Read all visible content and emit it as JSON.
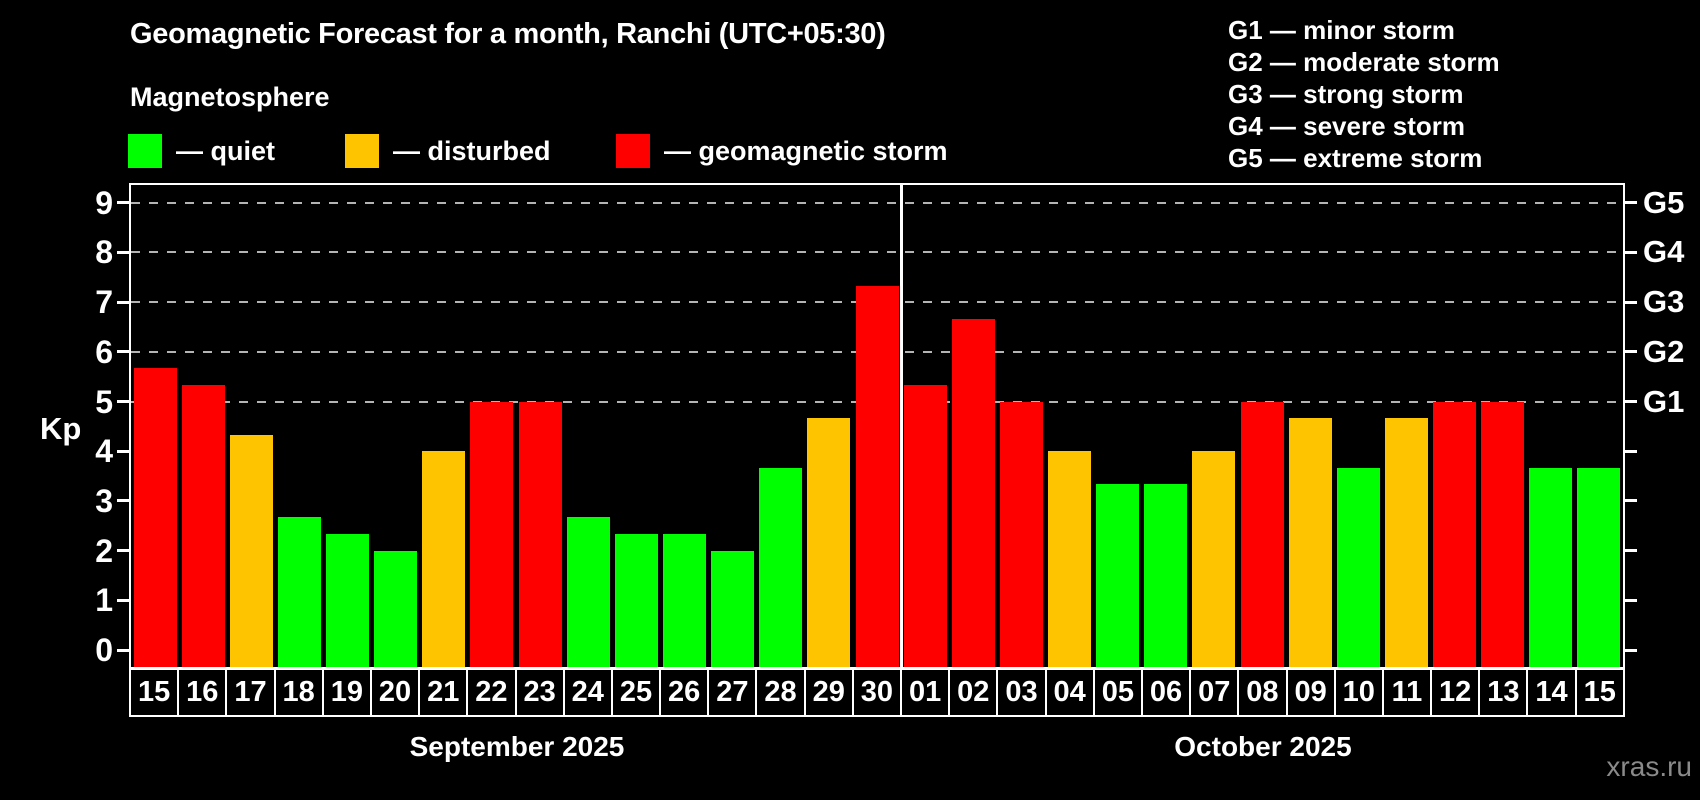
{
  "title": "Geomagnetic Forecast for a month, Ranchi (UTC+05:30)",
  "subtitle": "Magnetosphere",
  "legend": [
    {
      "key": "quiet",
      "label": "— quiet",
      "color": "#00ff00"
    },
    {
      "key": "disturbed",
      "label": "— disturbed",
      "color": "#ffc400"
    },
    {
      "key": "storm",
      "label": "— geomagnetic storm",
      "color": "#ff0000"
    }
  ],
  "g_scale_legend": [
    "G1 — minor storm",
    "G2 — moderate storm",
    "G3 — strong storm",
    "G4 — severe storm",
    "G5 — extreme storm"
  ],
  "watermark": "xras.ru",
  "chart_data": {
    "type": "bar",
    "ylabel": "Kp",
    "ylim": [
      0,
      9
    ],
    "yticks": [
      0,
      1,
      2,
      3,
      4,
      5,
      6,
      7,
      8,
      9
    ],
    "gridlines_at": [
      5,
      6,
      7,
      8,
      9
    ],
    "grid": "dashed, only at storm levels Kp 5-9",
    "legend_position": "top-left",
    "right_axis_labels": [
      {
        "kp": 5,
        "label": "G1"
      },
      {
        "kp": 6,
        "label": "G2"
      },
      {
        "kp": 7,
        "label": "G3"
      },
      {
        "kp": 8,
        "label": "G4"
      },
      {
        "kp": 9,
        "label": "G5"
      }
    ],
    "status_colors": {
      "quiet": "#00ff00",
      "disturbed": "#ffc400",
      "storm": "#ff0000"
    },
    "months": [
      {
        "label": "September 2025",
        "days": [
          {
            "day": "15",
            "kp": 5.67,
            "status": "storm"
          },
          {
            "day": "16",
            "kp": 5.33,
            "status": "storm"
          },
          {
            "day": "17",
            "kp": 4.33,
            "status": "disturbed"
          },
          {
            "day": "18",
            "kp": 2.67,
            "status": "quiet"
          },
          {
            "day": "19",
            "kp": 2.33,
            "status": "quiet"
          },
          {
            "day": "20",
            "kp": 2.0,
            "status": "quiet"
          },
          {
            "day": "21",
            "kp": 4.0,
            "status": "disturbed"
          },
          {
            "day": "22",
            "kp": 5.0,
            "status": "storm"
          },
          {
            "day": "23",
            "kp": 5.0,
            "status": "storm"
          },
          {
            "day": "24",
            "kp": 2.67,
            "status": "quiet"
          },
          {
            "day": "25",
            "kp": 2.33,
            "status": "quiet"
          },
          {
            "day": "26",
            "kp": 2.33,
            "status": "quiet"
          },
          {
            "day": "27",
            "kp": 2.0,
            "status": "quiet"
          },
          {
            "day": "28",
            "kp": 3.67,
            "status": "quiet"
          },
          {
            "day": "29",
            "kp": 4.67,
            "status": "disturbed"
          },
          {
            "day": "30",
            "kp": 7.33,
            "status": "storm"
          }
        ]
      },
      {
        "label": "October 2025",
        "days": [
          {
            "day": "01",
            "kp": 5.33,
            "status": "storm"
          },
          {
            "day": "02",
            "kp": 6.67,
            "status": "storm"
          },
          {
            "day": "03",
            "kp": 5.0,
            "status": "storm"
          },
          {
            "day": "04",
            "kp": 4.0,
            "status": "disturbed"
          },
          {
            "day": "05",
            "kp": 3.33,
            "status": "quiet"
          },
          {
            "day": "06",
            "kp": 3.33,
            "status": "quiet"
          },
          {
            "day": "07",
            "kp": 4.0,
            "status": "disturbed"
          },
          {
            "day": "08",
            "kp": 5.0,
            "status": "storm"
          },
          {
            "day": "09",
            "kp": 4.67,
            "status": "disturbed"
          },
          {
            "day": "10",
            "kp": 3.67,
            "status": "quiet"
          },
          {
            "day": "11",
            "kp": 4.67,
            "status": "disturbed"
          },
          {
            "day": "12",
            "kp": 5.0,
            "status": "storm"
          },
          {
            "day": "13",
            "kp": 5.0,
            "status": "storm"
          },
          {
            "day": "14",
            "kp": 3.67,
            "status": "quiet"
          },
          {
            "day": "15",
            "kp": 3.67,
            "status": "quiet"
          }
        ]
      }
    ]
  }
}
